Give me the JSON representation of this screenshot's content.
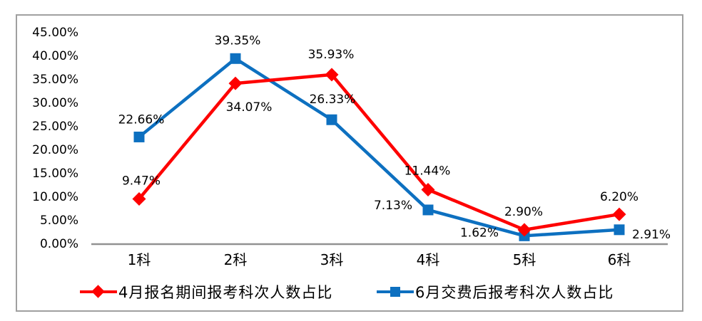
{
  "chart_data": {
    "type": "line",
    "categories": [
      "1科",
      "2科",
      "3科",
      "4科",
      "5科",
      "6科"
    ],
    "series": [
      {
        "name": "4月报名期间报考科次人数占比",
        "color": "#fe0000",
        "marker": "diamond",
        "values": [
          9.47,
          34.07,
          35.93,
          11.44,
          2.9,
          6.2
        ],
        "labels": [
          "9.47%",
          "34.07%",
          "35.93%",
          "11.44%",
          "2.90%",
          "6.20%"
        ]
      },
      {
        "name": "6月交费后报考科次人数占比",
        "color": "#0d70c0",
        "marker": "square",
        "values": [
          22.66,
          39.35,
          26.33,
          7.13,
          1.62,
          2.91
        ],
        "labels": [
          "22.66%",
          "39.35%",
          "26.33%",
          "7.13%",
          "1.62%",
          "2.91%"
        ]
      }
    ],
    "y_ticks": [
      "45.00%",
      "40.00%",
      "35.00%",
      "30.00%",
      "25.00%",
      "20.00%",
      "15.00%",
      "10.00%",
      "5.00%",
      "0.00%"
    ],
    "y_tick_values": [
      45,
      40,
      35,
      30,
      25,
      20,
      15,
      10,
      5,
      0
    ],
    "ylim": [
      0,
      45
    ],
    "xlabel": "",
    "ylabel": "",
    "title": "",
    "grid": false,
    "legend_position": "bottom",
    "axis_color": "#919191",
    "frame_color": "#a0a0a0",
    "text_color": "#000000"
  }
}
